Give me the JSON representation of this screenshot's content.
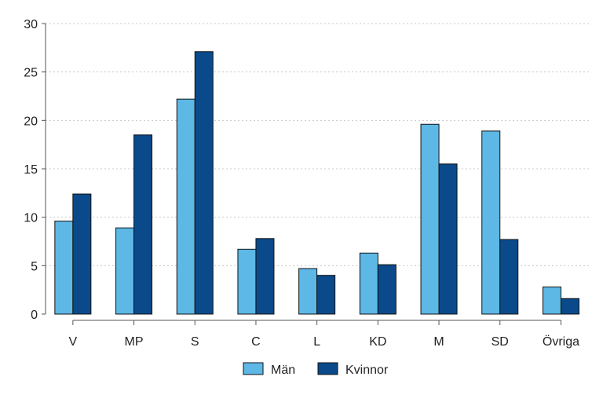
{
  "chart_data": {
    "type": "bar",
    "categories": [
      "V",
      "MP",
      "S",
      "C",
      "L",
      "KD",
      "M",
      "SD",
      "Övriga"
    ],
    "series": [
      {
        "name": "Män",
        "color": "#5DB8E6",
        "values": [
          9.6,
          8.9,
          22.2,
          6.7,
          4.7,
          6.3,
          19.6,
          18.9,
          2.8
        ]
      },
      {
        "name": "Kvinnor",
        "color": "#0A4A8A",
        "values": [
          12.4,
          18.5,
          27.1,
          7.8,
          4.0,
          5.1,
          15.5,
          7.7,
          1.6
        ]
      }
    ],
    "ylim": [
      0,
      30
    ],
    "yticks": [
      0,
      5,
      10,
      15,
      20,
      25,
      30
    ],
    "grid": true,
    "legend": "bottom-center",
    "title": "",
    "xlabel": "",
    "ylabel": ""
  }
}
